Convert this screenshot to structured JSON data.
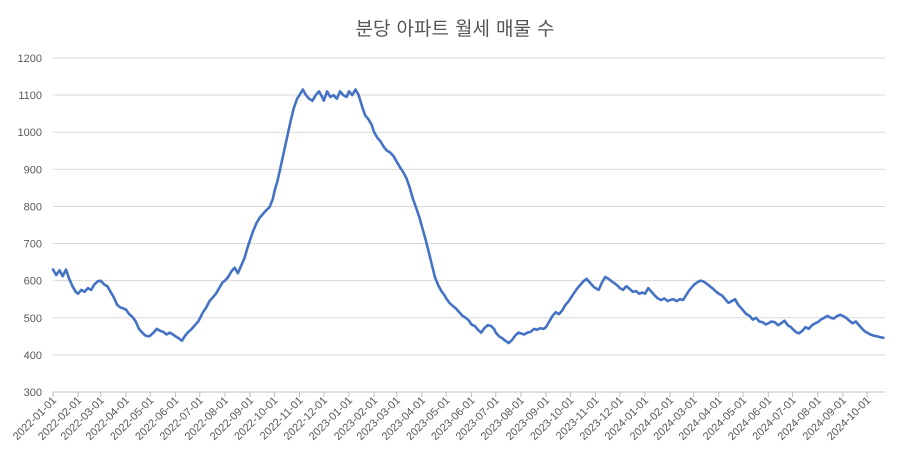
{
  "chart_data": {
    "type": "line",
    "title": "분당 아파트 월세 매물 수",
    "xlabel": "",
    "ylabel": "",
    "ylim": [
      300,
      1200
    ],
    "yticks": [
      300,
      400,
      500,
      600,
      700,
      800,
      900,
      1000,
      1100,
      1200
    ],
    "xlim": [
      "2022-01-01",
      "2024-10-23"
    ],
    "x_tick_labels": [
      "2022-01-01",
      "2022-02-01",
      "2022-03-01",
      "2022-04-01",
      "2022-05-01",
      "2022-06-01",
      "2022-07-01",
      "2022-08-01",
      "2022-09-01",
      "2022-10-01",
      "2022-11-01",
      "2022-12-01",
      "2023-01-01",
      "2023-02-01",
      "2023-03-01",
      "2023-04-01",
      "2023-05-01",
      "2023-06-01",
      "2023-07-01",
      "2023-08-01",
      "2023-09-01",
      "2023-10-01",
      "2023-11-01",
      "2023-12-01",
      "2024-01-01",
      "2024-02-01",
      "2024-03-01",
      "2024-04-01",
      "2024-05-01",
      "2024-06-01",
      "2024-07-01",
      "2024-08-01",
      "2024-09-01",
      "2024-10-01"
    ],
    "grid": true,
    "legend": "none",
    "series": [
      {
        "color": "#4472C4",
        "points": [
          [
            "2022-01-01",
            630
          ],
          [
            "2022-01-05",
            615
          ],
          [
            "2022-01-09",
            628
          ],
          [
            "2022-01-13",
            612
          ],
          [
            "2022-01-17",
            630
          ],
          [
            "2022-01-21",
            605
          ],
          [
            "2022-01-25",
            585
          ],
          [
            "2022-01-29",
            570
          ],
          [
            "2022-02-01",
            565
          ],
          [
            "2022-02-05",
            575
          ],
          [
            "2022-02-09",
            570
          ],
          [
            "2022-02-13",
            580
          ],
          [
            "2022-02-17",
            575
          ],
          [
            "2022-02-21",
            590
          ],
          [
            "2022-02-25",
            598
          ],
          [
            "2022-03-01",
            600
          ],
          [
            "2022-03-05",
            590
          ],
          [
            "2022-03-09",
            585
          ],
          [
            "2022-03-13",
            570
          ],
          [
            "2022-03-17",
            555
          ],
          [
            "2022-03-21",
            535
          ],
          [
            "2022-03-25",
            528
          ],
          [
            "2022-03-29",
            525
          ],
          [
            "2022-04-01",
            522
          ],
          [
            "2022-04-05",
            510
          ],
          [
            "2022-04-09",
            502
          ],
          [
            "2022-04-13",
            490
          ],
          [
            "2022-04-17",
            470
          ],
          [
            "2022-04-21",
            460
          ],
          [
            "2022-04-25",
            452
          ],
          [
            "2022-04-29",
            450
          ],
          [
            "2022-05-01",
            452
          ],
          [
            "2022-05-05",
            460
          ],
          [
            "2022-05-09",
            470
          ],
          [
            "2022-05-13",
            465
          ],
          [
            "2022-05-17",
            462
          ],
          [
            "2022-05-21",
            455
          ],
          [
            "2022-05-25",
            460
          ],
          [
            "2022-05-29",
            455
          ],
          [
            "2022-06-01",
            450
          ],
          [
            "2022-06-05",
            445
          ],
          [
            "2022-06-09",
            438
          ],
          [
            "2022-06-13",
            452
          ],
          [
            "2022-06-17",
            462
          ],
          [
            "2022-06-21",
            470
          ],
          [
            "2022-06-25",
            480
          ],
          [
            "2022-06-29",
            490
          ],
          [
            "2022-07-01",
            498
          ],
          [
            "2022-07-05",
            515
          ],
          [
            "2022-07-09",
            528
          ],
          [
            "2022-07-13",
            545
          ],
          [
            "2022-07-17",
            555
          ],
          [
            "2022-07-21",
            565
          ],
          [
            "2022-07-25",
            580
          ],
          [
            "2022-07-29",
            595
          ],
          [
            "2022-08-01",
            600
          ],
          [
            "2022-08-05",
            610
          ],
          [
            "2022-08-09",
            625
          ],
          [
            "2022-08-13",
            635
          ],
          [
            "2022-08-17",
            620
          ],
          [
            "2022-08-21",
            640
          ],
          [
            "2022-08-25",
            660
          ],
          [
            "2022-08-29",
            690
          ],
          [
            "2022-09-01",
            710
          ],
          [
            "2022-09-05",
            735
          ],
          [
            "2022-09-09",
            755
          ],
          [
            "2022-09-13",
            770
          ],
          [
            "2022-09-17",
            780
          ],
          [
            "2022-09-21",
            790
          ],
          [
            "2022-09-25",
            798
          ],
          [
            "2022-09-29",
            820
          ],
          [
            "2022-10-01",
            840
          ],
          [
            "2022-10-05",
            870
          ],
          [
            "2022-10-09",
            910
          ],
          [
            "2022-10-13",
            950
          ],
          [
            "2022-10-17",
            990
          ],
          [
            "2022-10-21",
            1030
          ],
          [
            "2022-10-25",
            1065
          ],
          [
            "2022-10-29",
            1090
          ],
          [
            "2022-11-01",
            1100
          ],
          [
            "2022-11-05",
            1115
          ],
          [
            "2022-11-09",
            1100
          ],
          [
            "2022-11-13",
            1090
          ],
          [
            "2022-11-17",
            1085
          ],
          [
            "2022-11-21",
            1100
          ],
          [
            "2022-11-25",
            1110
          ],
          [
            "2022-11-29",
            1095
          ],
          [
            "2022-12-01",
            1085
          ],
          [
            "2022-12-05",
            1110
          ],
          [
            "2022-12-09",
            1095
          ],
          [
            "2022-12-13",
            1100
          ],
          [
            "2022-12-17",
            1090
          ],
          [
            "2022-12-21",
            1110
          ],
          [
            "2022-12-25",
            1100
          ],
          [
            "2022-12-29",
            1095
          ],
          [
            "2023-01-01",
            1110
          ],
          [
            "2023-01-05",
            1100
          ],
          [
            "2023-01-09",
            1115
          ],
          [
            "2023-01-13",
            1100
          ],
          [
            "2023-01-17",
            1070
          ],
          [
            "2023-01-21",
            1045
          ],
          [
            "2023-01-25",
            1035
          ],
          [
            "2023-01-29",
            1020
          ],
          [
            "2023-02-01",
            1000
          ],
          [
            "2023-02-05",
            985
          ],
          [
            "2023-02-09",
            975
          ],
          [
            "2023-02-13",
            960
          ],
          [
            "2023-02-17",
            950
          ],
          [
            "2023-02-21",
            945
          ],
          [
            "2023-02-25",
            935
          ],
          [
            "2023-03-01",
            920
          ],
          [
            "2023-03-05",
            905
          ],
          [
            "2023-03-09",
            892
          ],
          [
            "2023-03-13",
            875
          ],
          [
            "2023-03-17",
            850
          ],
          [
            "2023-03-21",
            820
          ],
          [
            "2023-03-25",
            795
          ],
          [
            "2023-03-29",
            770
          ],
          [
            "2023-04-01",
            745
          ],
          [
            "2023-04-05",
            715
          ],
          [
            "2023-04-09",
            680
          ],
          [
            "2023-04-13",
            645
          ],
          [
            "2023-04-17",
            610
          ],
          [
            "2023-04-21",
            588
          ],
          [
            "2023-04-25",
            572
          ],
          [
            "2023-04-29",
            560
          ],
          [
            "2023-05-01",
            552
          ],
          [
            "2023-05-05",
            540
          ],
          [
            "2023-05-09",
            532
          ],
          [
            "2023-05-13",
            525
          ],
          [
            "2023-05-17",
            515
          ],
          [
            "2023-05-21",
            505
          ],
          [
            "2023-05-25",
            500
          ],
          [
            "2023-05-29",
            492
          ],
          [
            "2023-06-01",
            482
          ],
          [
            "2023-06-05",
            478
          ],
          [
            "2023-06-09",
            468
          ],
          [
            "2023-06-13",
            460
          ],
          [
            "2023-06-17",
            472
          ],
          [
            "2023-06-21",
            480
          ],
          [
            "2023-06-25",
            478
          ],
          [
            "2023-06-29",
            470
          ],
          [
            "2023-07-01",
            460
          ],
          [
            "2023-07-05",
            450
          ],
          [
            "2023-07-09",
            445
          ],
          [
            "2023-07-13",
            438
          ],
          [
            "2023-07-17",
            432
          ],
          [
            "2023-07-21",
            440
          ],
          [
            "2023-07-25",
            452
          ],
          [
            "2023-07-29",
            460
          ],
          [
            "2023-08-01",
            458
          ],
          [
            "2023-08-05",
            455
          ],
          [
            "2023-08-09",
            460
          ],
          [
            "2023-08-13",
            462
          ],
          [
            "2023-08-17",
            470
          ],
          [
            "2023-08-21",
            468
          ],
          [
            "2023-08-25",
            472
          ],
          [
            "2023-08-29",
            470
          ],
          [
            "2023-09-01",
            475
          ],
          [
            "2023-09-05",
            490
          ],
          [
            "2023-09-09",
            505
          ],
          [
            "2023-09-13",
            515
          ],
          [
            "2023-09-17",
            510
          ],
          [
            "2023-09-21",
            520
          ],
          [
            "2023-09-25",
            535
          ],
          [
            "2023-09-29",
            545
          ],
          [
            "2023-10-01",
            552
          ],
          [
            "2023-10-05",
            565
          ],
          [
            "2023-10-09",
            578
          ],
          [
            "2023-10-13",
            588
          ],
          [
            "2023-10-17",
            598
          ],
          [
            "2023-10-21",
            605
          ],
          [
            "2023-10-25",
            595
          ],
          [
            "2023-10-29",
            585
          ],
          [
            "2023-11-01",
            580
          ],
          [
            "2023-11-05",
            575
          ],
          [
            "2023-11-09",
            595
          ],
          [
            "2023-11-13",
            610
          ],
          [
            "2023-11-17",
            605
          ],
          [
            "2023-11-21",
            598
          ],
          [
            "2023-11-25",
            592
          ],
          [
            "2023-11-29",
            585
          ],
          [
            "2023-12-01",
            580
          ],
          [
            "2023-12-05",
            575
          ],
          [
            "2023-12-09",
            585
          ],
          [
            "2023-12-13",
            578
          ],
          [
            "2023-12-17",
            570
          ],
          [
            "2023-12-21",
            572
          ],
          [
            "2023-12-25",
            565
          ],
          [
            "2023-12-29",
            568
          ],
          [
            "2024-01-01",
            565
          ],
          [
            "2024-01-05",
            580
          ],
          [
            "2024-01-09",
            570
          ],
          [
            "2024-01-13",
            560
          ],
          [
            "2024-01-17",
            552
          ],
          [
            "2024-01-21",
            548
          ],
          [
            "2024-01-25",
            552
          ],
          [
            "2024-01-29",
            545
          ],
          [
            "2024-02-01",
            548
          ],
          [
            "2024-02-05",
            550
          ],
          [
            "2024-02-09",
            545
          ],
          [
            "2024-02-13",
            550
          ],
          [
            "2024-02-17",
            548
          ],
          [
            "2024-02-21",
            562
          ],
          [
            "2024-02-25",
            575
          ],
          [
            "2024-02-29",
            585
          ],
          [
            "2024-03-01",
            588
          ],
          [
            "2024-03-05",
            595
          ],
          [
            "2024-03-09",
            600
          ],
          [
            "2024-03-13",
            598
          ],
          [
            "2024-03-17",
            592
          ],
          [
            "2024-03-21",
            585
          ],
          [
            "2024-03-25",
            578
          ],
          [
            "2024-03-29",
            570
          ],
          [
            "2024-04-01",
            565
          ],
          [
            "2024-04-05",
            560
          ],
          [
            "2024-04-09",
            550
          ],
          [
            "2024-04-13",
            540
          ],
          [
            "2024-04-17",
            545
          ],
          [
            "2024-04-21",
            550
          ],
          [
            "2024-04-25",
            535
          ],
          [
            "2024-04-29",
            525
          ],
          [
            "2024-05-01",
            520
          ],
          [
            "2024-05-05",
            510
          ],
          [
            "2024-05-09",
            505
          ],
          [
            "2024-05-13",
            495
          ],
          [
            "2024-05-17",
            500
          ],
          [
            "2024-05-21",
            490
          ],
          [
            "2024-05-25",
            488
          ],
          [
            "2024-05-29",
            482
          ],
          [
            "2024-06-01",
            485
          ],
          [
            "2024-06-05",
            490
          ],
          [
            "2024-06-09",
            488
          ],
          [
            "2024-06-13",
            480
          ],
          [
            "2024-06-17",
            485
          ],
          [
            "2024-06-21",
            492
          ],
          [
            "2024-06-25",
            480
          ],
          [
            "2024-06-29",
            475
          ],
          [
            "2024-07-01",
            470
          ],
          [
            "2024-07-05",
            462
          ],
          [
            "2024-07-09",
            458
          ],
          [
            "2024-07-13",
            465
          ],
          [
            "2024-07-17",
            475
          ],
          [
            "2024-07-21",
            470
          ],
          [
            "2024-07-25",
            480
          ],
          [
            "2024-07-29",
            485
          ],
          [
            "2024-08-01",
            488
          ],
          [
            "2024-08-05",
            495
          ],
          [
            "2024-08-09",
            500
          ],
          [
            "2024-08-13",
            505
          ],
          [
            "2024-08-17",
            500
          ],
          [
            "2024-08-21",
            498
          ],
          [
            "2024-08-25",
            505
          ],
          [
            "2024-08-29",
            508
          ],
          [
            "2024-09-01",
            505
          ],
          [
            "2024-09-05",
            500
          ],
          [
            "2024-09-09",
            492
          ],
          [
            "2024-09-13",
            485
          ],
          [
            "2024-09-17",
            490
          ],
          [
            "2024-09-21",
            480
          ],
          [
            "2024-09-25",
            470
          ],
          [
            "2024-09-29",
            462
          ],
          [
            "2024-10-01",
            460
          ],
          [
            "2024-10-05",
            455
          ],
          [
            "2024-10-09",
            452
          ],
          [
            "2024-10-13",
            450
          ],
          [
            "2024-10-17",
            448
          ],
          [
            "2024-10-21",
            446
          ]
        ]
      }
    ]
  }
}
